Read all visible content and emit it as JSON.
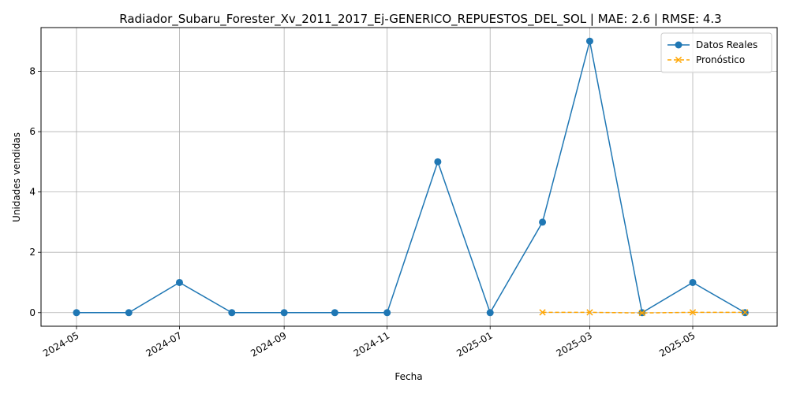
{
  "chart_data": {
    "type": "line",
    "title": "Radiador_Subaru_Forester_Xv_2011_2017_Ej-GENERICO_REPUESTOS_DEL_SOL | MAE: 2.6 | RMSE: 4.3",
    "xlabel": "Fecha",
    "ylabel": "Unidades vendidas",
    "x_ticks": [
      "2024-05",
      "2024-07",
      "2024-09",
      "2024-11",
      "2025-01",
      "2025-03",
      "2025-05"
    ],
    "y_ticks": [
      0,
      2,
      4,
      6,
      8
    ],
    "xlim": [
      "2024-04-10",
      "2025-06-20"
    ],
    "ylim": [
      -0.45,
      9.45
    ],
    "grid": true,
    "legend_position": "top-right",
    "series": [
      {
        "name": "Datos Reales",
        "color": "#1f77b4",
        "marker": "circle",
        "line_style": "solid",
        "points": [
          {
            "x": "2024-05-01",
            "y": 0
          },
          {
            "x": "2024-06-01",
            "y": 0
          },
          {
            "x": "2024-07-01",
            "y": 1
          },
          {
            "x": "2024-08-01",
            "y": 0
          },
          {
            "x": "2024-09-01",
            "y": 0
          },
          {
            "x": "2024-10-01",
            "y": 0
          },
          {
            "x": "2024-11-01",
            "y": 0
          },
          {
            "x": "2024-12-01",
            "y": 5
          },
          {
            "x": "2025-01-01",
            "y": 0
          },
          {
            "x": "2025-02-01",
            "y": 3
          },
          {
            "x": "2025-03-01",
            "y": 9
          },
          {
            "x": "2025-04-01",
            "y": 0
          },
          {
            "x": "2025-05-01",
            "y": 1
          },
          {
            "x": "2025-06-01",
            "y": 0
          }
        ]
      },
      {
        "name": "Pronóstico",
        "color": "#ffa500",
        "marker": "x",
        "line_style": "dashed",
        "points": [
          {
            "x": "2025-02-01",
            "y": 0.01
          },
          {
            "x": "2025-03-01",
            "y": 0.01
          },
          {
            "x": "2025-04-01",
            "y": -0.01
          },
          {
            "x": "2025-05-01",
            "y": 0.01
          },
          {
            "x": "2025-06-01",
            "y": 0.01
          }
        ]
      }
    ]
  }
}
